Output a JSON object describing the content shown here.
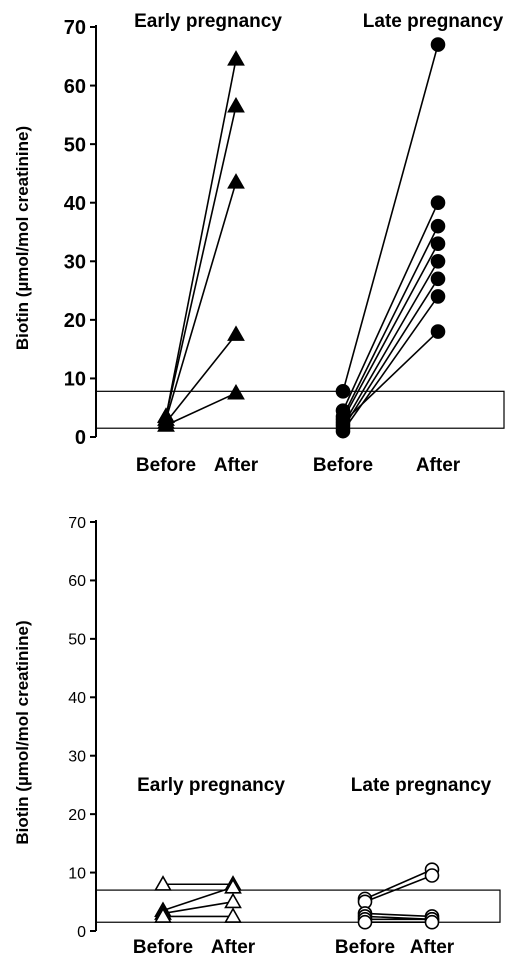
{
  "chart_data": [
    {
      "type": "scatter",
      "ylabel": "Biotin (µmol/mol creatinine)",
      "ylim": [
        0,
        70
      ],
      "yticks": [
        0,
        10,
        20,
        30,
        40,
        50,
        60,
        70
      ],
      "reference_range": [
        1.5,
        7.8
      ],
      "groups": [
        {
          "name": "Early pregnancy",
          "marker": "filled-triangle",
          "categories": [
            "Before",
            "After"
          ],
          "pairs": [
            [
              3.5,
              64.5
            ],
            [
              3.5,
              56.5
            ],
            [
              3.0,
              43.5
            ],
            [
              2.5,
              17.5
            ],
            [
              2.0,
              7.5
            ]
          ]
        },
        {
          "name": "Late pregnancy",
          "marker": "filled-circle",
          "categories": [
            "Before",
            "After"
          ],
          "pairs": [
            [
              7.8,
              67.0
            ],
            [
              4.5,
              40.0
            ],
            [
              3.5,
              36.0
            ],
            [
              3.0,
              33.0
            ],
            [
              2.0,
              30.0
            ],
            [
              1.5,
              27.0
            ],
            [
              1.0,
              24.0
            ],
            [
              2.5,
              18.0
            ]
          ]
        }
      ]
    },
    {
      "type": "scatter",
      "ylabel": "Biotin (µmol/mol creatinine)",
      "ylim": [
        0,
        70
      ],
      "yticks": [
        0,
        10,
        20,
        30,
        40,
        50,
        60,
        70
      ],
      "reference_range": [
        1.5,
        7.0
      ],
      "groups": [
        {
          "name": "Early pregnancy",
          "marker": "open-triangle",
          "categories": [
            "Before",
            "After"
          ],
          "pairs": [
            [
              8.0,
              8.0
            ],
            [
              3.5,
              7.5
            ],
            [
              3.0,
              5.0
            ],
            [
              2.5,
              2.5
            ]
          ]
        },
        {
          "name": "Late pregnancy",
          "marker": "open-circle",
          "categories": [
            "Before",
            "After"
          ],
          "pairs": [
            [
              5.5,
              10.5
            ],
            [
              5.0,
              9.5
            ],
            [
              3.0,
              2.5
            ],
            [
              2.5,
              2.0
            ],
            [
              2.0,
              2.0
            ],
            [
              1.5,
              1.5
            ]
          ]
        }
      ]
    }
  ]
}
